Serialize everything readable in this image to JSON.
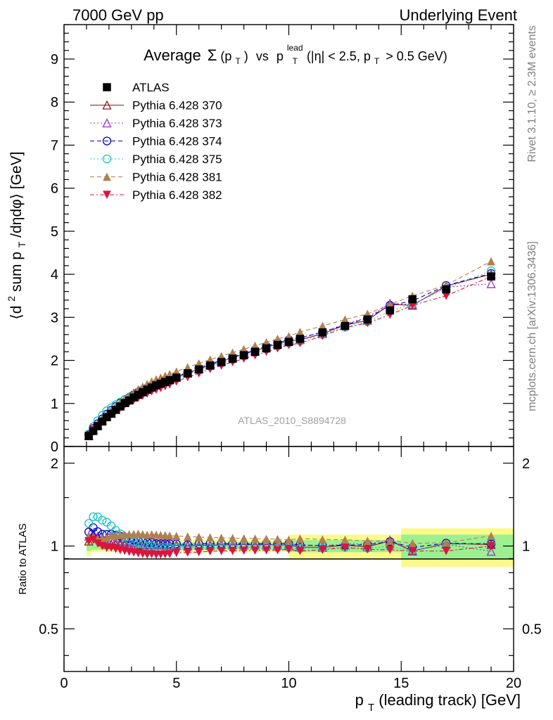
{
  "header": {
    "left": "7000 GeV pp",
    "right": "Underlying Event"
  },
  "side_labels": {
    "rivet": "Rivet 3.1.10, ≥ 2.3M events",
    "mcplots": "mcplots.cern.ch [arXiv:1306.3436]"
  },
  "watermark": "ATLAS_2010_S8894728",
  "chart_data": [
    {
      "type": "scatter",
      "title": "Average Σ(pT) vs pT^lead (|η| < 2.5, pT > 0.5 GeV)",
      "title_parts": {
        "average": "Average",
        "sigma": "Σ",
        "pt_open": "(p",
        "t_sub": "T",
        "pt_close": ")",
        "vs": "vs",
        "p": "p",
        "lead": "lead",
        "cut": "(|η| < 2.5, p",
        "cut_t": "T",
        "cut_end": "> 0.5 GeV)"
      },
      "ylabel": "⟨d² sum pT/dηdφ⟩ [GeV]",
      "ylabel_parts": {
        "a": "⟨d",
        "sup2": "2",
        "b": " sum p",
        "sub": "T",
        "c": "/dηdφ⟩ [GeV]"
      },
      "xlim": [
        0,
        20
      ],
      "ylim": [
        0,
        9.8
      ],
      "y_ticks": [
        "0",
        "1",
        "2",
        "3",
        "4",
        "5",
        "6",
        "7",
        "8",
        "9"
      ],
      "x": [
        1.1,
        1.3,
        1.5,
        1.7,
        1.9,
        2.1,
        2.3,
        2.5,
        2.7,
        2.9,
        3.1,
        3.3,
        3.5,
        3.7,
        3.9,
        4.1,
        4.3,
        4.5,
        4.7,
        5.0,
        5.5,
        6.0,
        6.5,
        7.0,
        7.5,
        8.0,
        8.5,
        9.0,
        9.5,
        10.0,
        10.5,
        11.5,
        12.5,
        13.5,
        14.5,
        15.5,
        17.0,
        19.0
      ],
      "legend_position": "top-left",
      "series": [
        {
          "name": "ATLAS",
          "marker": "filled-square",
          "color": "#000000",
          "dash": "",
          "values": [
            0.24,
            0.36,
            0.47,
            0.58,
            0.68,
            0.76,
            0.85,
            0.93,
            1.01,
            1.07,
            1.14,
            1.2,
            1.26,
            1.32,
            1.37,
            1.42,
            1.46,
            1.5,
            1.54,
            1.6,
            1.7,
            1.79,
            1.88,
            1.96,
            2.04,
            2.12,
            2.2,
            2.28,
            2.36,
            2.43,
            2.5,
            2.65,
            2.8,
            2.95,
            3.16,
            3.42,
            3.65,
            3.95
          ]
        },
        {
          "name": "Pythia 6.428 370",
          "marker": "open-triangle-up",
          "color": "#8b1a1a",
          "dash": "",
          "values": [
            0.25,
            0.39,
            0.5,
            0.6,
            0.69,
            0.77,
            0.86,
            0.94,
            1.02,
            1.08,
            1.15,
            1.21,
            1.27,
            1.33,
            1.38,
            1.43,
            1.47,
            1.51,
            1.55,
            1.61,
            1.7,
            1.8,
            1.89,
            1.98,
            2.06,
            2.15,
            2.22,
            2.31,
            2.38,
            2.45,
            2.48,
            2.62,
            2.82,
            2.93,
            3.3,
            3.28,
            3.73,
            4.0
          ]
        },
        {
          "name": "Pythia 6.428 373",
          "marker": "open-triangle-up",
          "color": "#9932cc",
          "dash": "2,3",
          "values": [
            0.26,
            0.4,
            0.51,
            0.62,
            0.72,
            0.8,
            0.88,
            0.96,
            1.04,
            1.1,
            1.17,
            1.23,
            1.28,
            1.34,
            1.39,
            1.44,
            1.48,
            1.52,
            1.56,
            1.62,
            1.72,
            1.81,
            1.9,
            1.98,
            2.06,
            2.14,
            2.22,
            2.3,
            2.38,
            2.45,
            2.53,
            2.65,
            2.85,
            3.0,
            3.32,
            3.3,
            3.7,
            3.78
          ]
        },
        {
          "name": "Pythia 6.428 374",
          "marker": "open-circle",
          "color": "#0000cd",
          "dash": "6,4",
          "values": [
            0.27,
            0.42,
            0.53,
            0.64,
            0.75,
            0.84,
            0.93,
            1.01,
            1.09,
            1.14,
            1.2,
            1.26,
            1.31,
            1.36,
            1.41,
            1.45,
            1.49,
            1.53,
            1.57,
            1.63,
            1.72,
            1.82,
            1.92,
            2.0,
            2.08,
            2.16,
            2.24,
            2.33,
            2.41,
            2.48,
            2.52,
            2.66,
            2.82,
            2.98,
            3.28,
            3.38,
            3.74,
            4.02
          ]
        },
        {
          "name": "Pythia 6.428 375",
          "marker": "open-circle",
          "color": "#20c0c0",
          "dash": "2,3",
          "values": [
            0.29,
            0.46,
            0.6,
            0.72,
            0.83,
            0.9,
            0.97,
            1.03,
            1.09,
            1.13,
            1.18,
            1.23,
            1.28,
            1.32,
            1.37,
            1.41,
            1.44,
            1.48,
            1.52,
            1.58,
            1.68,
            1.77,
            1.86,
            1.94,
            2.02,
            2.1,
            2.18,
            2.26,
            2.33,
            2.4,
            2.45,
            2.6,
            2.77,
            2.9,
            3.15,
            3.3,
            3.67,
            4.08
          ]
        },
        {
          "name": "Pythia 6.428 381",
          "marker": "filled-triangle-up",
          "color": "#b08050",
          "dash": "6,4",
          "values": [
            0.26,
            0.39,
            0.5,
            0.62,
            0.73,
            0.83,
            0.93,
            1.02,
            1.11,
            1.18,
            1.26,
            1.33,
            1.39,
            1.45,
            1.51,
            1.56,
            1.6,
            1.64,
            1.68,
            1.74,
            1.84,
            1.93,
            2.02,
            2.1,
            2.18,
            2.26,
            2.34,
            2.42,
            2.5,
            2.56,
            2.66,
            2.8,
            2.95,
            3.08,
            3.3,
            3.5,
            3.75,
            4.3
          ]
        },
        {
          "name": "Pythia 6.428 382",
          "marker": "filled-triangle-down",
          "color": "#dc143c",
          "dash": "6,3,2,3",
          "values": [
            0.25,
            0.38,
            0.48,
            0.58,
            0.67,
            0.75,
            0.83,
            0.9,
            0.97,
            1.02,
            1.08,
            1.13,
            1.18,
            1.23,
            1.28,
            1.32,
            1.36,
            1.4,
            1.44,
            1.51,
            1.61,
            1.7,
            1.8,
            1.88,
            1.96,
            2.04,
            2.12,
            2.2,
            2.28,
            2.36,
            2.4,
            2.57,
            2.76,
            2.87,
            3.06,
            3.28,
            3.5,
            3.95
          ]
        }
      ]
    },
    {
      "type": "scatter",
      "ylabel": "Ratio to ATLAS",
      "xlabel": "pT (leading track) [GeV]",
      "xlabel_parts": {
        "p": "p",
        "sub": "T",
        "rest": " (leading track) [GeV]"
      },
      "xlim": [
        0,
        20
      ],
      "ylim": [
        0.35,
        2.3
      ],
      "y_scale": "log",
      "x_ticks": [
        "0",
        "5",
        "10",
        "15",
        "20"
      ],
      "y_ticks": [
        "0.5",
        "1",
        "2"
      ],
      "reference_line": 1,
      "uncertainty_bands": [
        {
          "x0": 1.0,
          "x1": 1.2,
          "inner": [
            0.96,
            1.04
          ],
          "outer": [
            0.92,
            1.08
          ]
        },
        {
          "x0": 1.2,
          "x1": 10.0,
          "inner": [
            0.97,
            1.03
          ],
          "outer": [
            0.95,
            1.05
          ]
        },
        {
          "x0": 10.0,
          "x1": 15.0,
          "inner": [
            0.95,
            1.05
          ],
          "outer": [
            0.9,
            1.1
          ]
        },
        {
          "x0": 15.0,
          "x1": 20.0,
          "inner": [
            0.9,
            1.1
          ],
          "outer": [
            0.84,
            1.16
          ]
        }
      ],
      "band_colors": {
        "inner": "#9cf08f",
        "outer": "#fafa8a"
      }
    }
  ]
}
